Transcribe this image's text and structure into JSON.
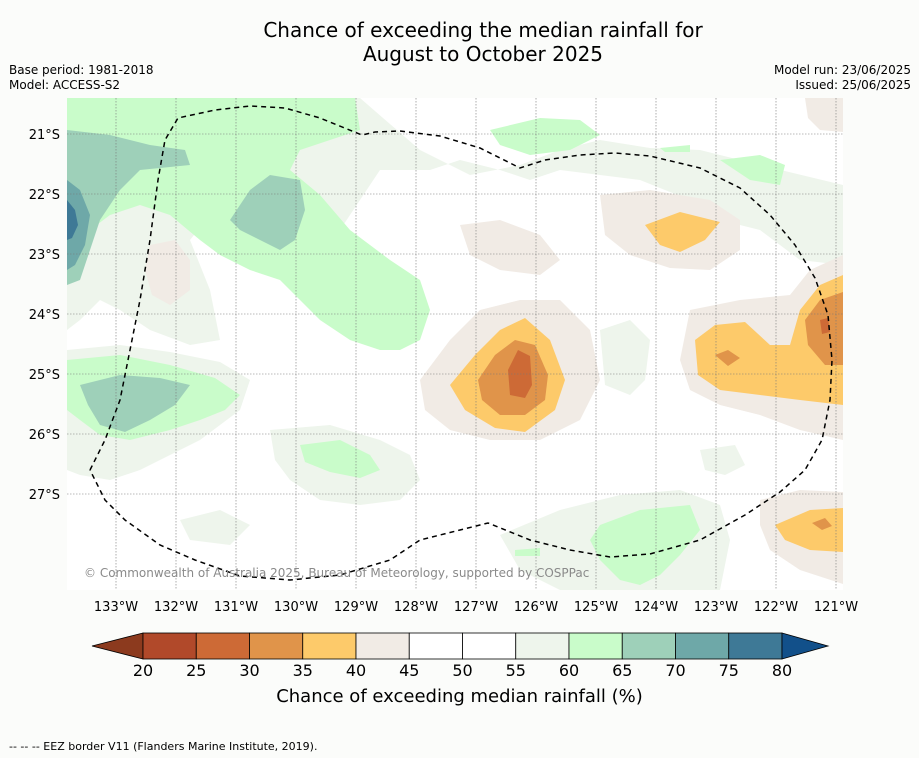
{
  "title_line1": "Chance of exceeding the median rainfall for",
  "title_line2": "August to October 2025",
  "base_period": "Base period: 1981-2018",
  "model": "Model: ACCESS-S2",
  "model_run": "Model run: 23/06/2025",
  "issued": "Issued: 25/06/2025",
  "copyright": "© Commonwealth of Australia 2025, Bureau of Meteorology, supported by COSPPac",
  "lat_labels": [
    "21°S",
    "22°S",
    "23°S",
    "24°S",
    "25°S",
    "26°S",
    "27°S"
  ],
  "lon_labels": [
    "133°W",
    "132°W",
    "131°W",
    "130°W",
    "129°W",
    "128°W",
    "127°W",
    "126°W",
    "125°W",
    "124°W",
    "123°W",
    "122°W",
    "121°W"
  ],
  "colorbar": {
    "ticks": [
      "20",
      "25",
      "30",
      "35",
      "40",
      "45",
      "50",
      "55",
      "60",
      "65",
      "70",
      "75",
      "80"
    ],
    "colors": [
      "#8c3a1e",
      "#b1492a",
      "#cd6a36",
      "#e0944a",
      "#fdca6a",
      "#f1ebe5",
      "#ffffff",
      "#ffffff",
      "#eef5ec",
      "#c9fcca",
      "#9ed0b9",
      "#6ea8a8",
      "#3e7996",
      "#12508a"
    ],
    "label": "Chance of exceeding median rainfall (%)"
  },
  "legend_footer": "--  --  -- EEZ border V11 (Flanders Marine Institute, 2019)."
}
